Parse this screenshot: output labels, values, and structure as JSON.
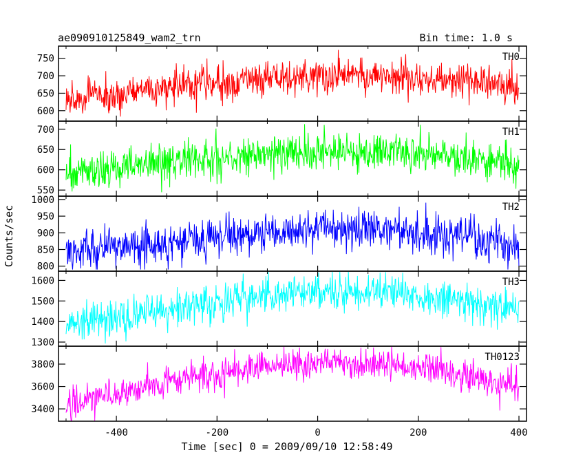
{
  "chart_data": {
    "type": "line",
    "title": "ae090910125849_wam2_trn",
    "subtitle": "Bin time: 1.0 s",
    "xlabel": "Time [sec] 0 = 2009/09/10 12:58:49",
    "ylabel": "Counts/sec",
    "xlim": [
      -515,
      415
    ],
    "xticks": [
      -400,
      -200,
      0,
      200,
      400
    ],
    "grid": false,
    "panels": [
      {
        "name": "TH0",
        "color": "#ff0000",
        "ylim": [
          570,
          785
        ],
        "yticks": [
          600,
          650,
          700,
          750
        ],
        "trend": {
          "x": [
            -500,
            -400,
            -300,
            -200,
            -100,
            0,
            100,
            200,
            300,
            400
          ],
          "y": [
            630,
            645,
            670,
            685,
            695,
            700,
            700,
            693,
            683,
            660
          ]
        },
        "noise": 25,
        "range": [
          575,
          780
        ]
      },
      {
        "name": "TH1",
        "color": "#00ff00",
        "ylim": [
          535,
          720
        ],
        "yticks": [
          550,
          600,
          650,
          700
        ],
        "trend": {
          "x": [
            -500,
            -400,
            -300,
            -200,
            -100,
            0,
            100,
            200,
            300,
            400
          ],
          "y": [
            590,
            605,
            618,
            628,
            640,
            645,
            643,
            638,
            630,
            615
          ]
        },
        "noise": 24,
        "range": [
          540,
          716
        ]
      },
      {
        "name": "TH2",
        "color": "#0000ff",
        "ylim": [
          785,
          1010
        ],
        "yticks": [
          800,
          850,
          900,
          950,
          1000
        ],
        "trend": {
          "x": [
            -500,
            -400,
            -300,
            -200,
            -100,
            0,
            100,
            200,
            300,
            400
          ],
          "y": [
            850,
            860,
            872,
            885,
            900,
            915,
            912,
            900,
            885,
            860
          ]
        },
        "noise": 30,
        "range": [
          790,
          1005
        ]
      },
      {
        "name": "TH3",
        "color": "#00ffff",
        "ylim": [
          1280,
          1645
        ],
        "yticks": [
          1300,
          1400,
          1500,
          1600
        ],
        "trend": {
          "x": [
            -500,
            -400,
            -300,
            -200,
            -100,
            0,
            100,
            200,
            300,
            400
          ],
          "y": [
            1380,
            1420,
            1460,
            1500,
            1530,
            1545,
            1540,
            1525,
            1500,
            1460
          ]
        },
        "noise": 45,
        "range": [
          1285,
          1642
        ]
      },
      {
        "name": "TH0123",
        "color": "#ff00ff",
        "ylim": [
          3290,
          3960
        ],
        "yticks": [
          3400,
          3600,
          3800
        ],
        "trend": {
          "x": [
            -500,
            -400,
            -300,
            -200,
            -100,
            0,
            100,
            200,
            300,
            400
          ],
          "y": [
            3440,
            3540,
            3640,
            3720,
            3790,
            3820,
            3810,
            3770,
            3700,
            3590
          ]
        },
        "noise": 70,
        "range": [
          3295,
          3955
        ]
      }
    ]
  }
}
